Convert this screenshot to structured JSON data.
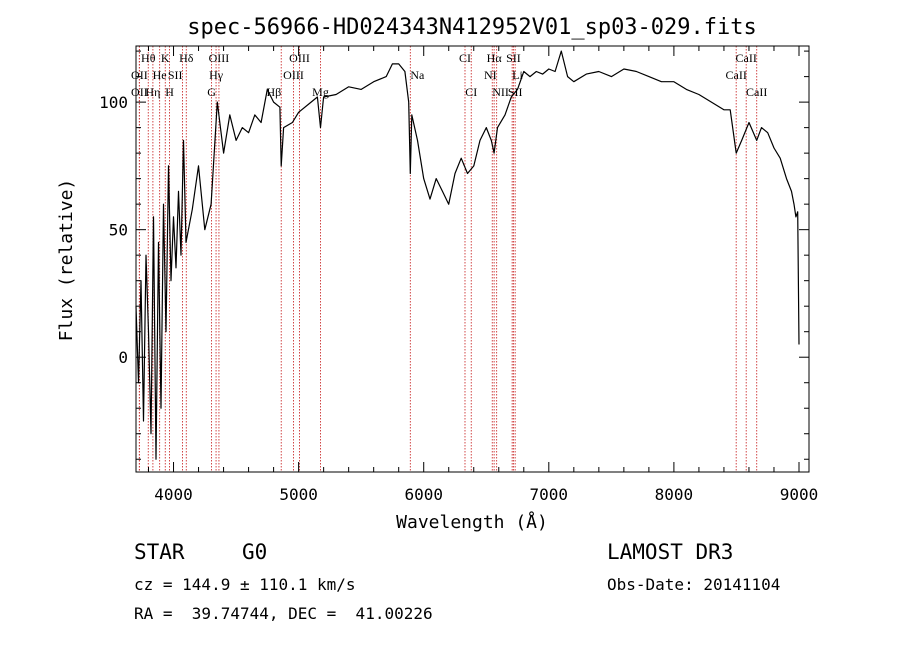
{
  "chart_data": {
    "type": "line",
    "title": "spec-56966-HD024343N412952V01_sp03-029.fits",
    "xlabel": "Wavelength (Å)",
    "ylabel": "Flux (relative)",
    "xlim": [
      3700,
      9080
    ],
    "ylim": [
      -45,
      122
    ],
    "x_ticks": [
      4000,
      5000,
      6000,
      7000,
      8000,
      9000
    ],
    "y_ticks": [
      0,
      50,
      100
    ],
    "grid": false,
    "series": [
      {
        "line_color": "#000000",
        "x": [
          3700,
          3720,
          3740,
          3760,
          3780,
          3800,
          3820,
          3840,
          3860,
          3880,
          3900,
          3920,
          3940,
          3960,
          3980,
          4000,
          4020,
          4040,
          4060,
          4080,
          4100,
          4150,
          4200,
          4250,
          4300,
          4350,
          4400,
          4450,
          4500,
          4550,
          4600,
          4650,
          4700,
          4750,
          4800,
          4850,
          4861,
          4880,
          4950,
          5000,
          5100,
          5150,
          5175,
          5200,
          5300,
          5400,
          5500,
          5600,
          5700,
          5750,
          5800,
          5850,
          5880,
          5893,
          5905,
          5950,
          6000,
          6050,
          6100,
          6150,
          6200,
          6250,
          6300,
          6350,
          6400,
          6450,
          6500,
          6540,
          6563,
          6590,
          6650,
          6700,
          6750,
          6800,
          6850,
          6900,
          6950,
          7000,
          7050,
          7100,
          7150,
          7200,
          7300,
          7400,
          7500,
          7600,
          7700,
          7800,
          7900,
          8000,
          8100,
          8200,
          8300,
          8400,
          8450,
          8498,
          8542,
          8600,
          8662,
          8700,
          8750,
          8800,
          8850,
          8900,
          8940,
          8960,
          8975,
          8990,
          9000
        ],
        "y": [
          20,
          -10,
          30,
          -25,
          40,
          10,
          -30,
          55,
          -40,
          45,
          -20,
          60,
          10,
          75,
          30,
          55,
          35,
          65,
          40,
          85,
          45,
          58,
          75,
          50,
          60,
          100,
          80,
          95,
          85,
          90,
          88,
          95,
          92,
          105,
          100,
          98,
          75,
          90,
          92,
          96,
          100,
          102,
          90,
          102,
          103,
          106,
          105,
          108,
          110,
          115,
          115,
          112,
          100,
          72,
          95,
          85,
          70,
          62,
          70,
          65,
          60,
          72,
          78,
          72,
          75,
          85,
          90,
          85,
          80,
          90,
          95,
          102,
          105,
          112,
          110,
          112,
          111,
          113,
          112,
          120,
          110,
          108,
          111,
          112,
          110,
          113,
          112,
          110,
          108,
          108,
          105,
          103,
          100,
          97,
          97,
          80,
          85,
          92,
          85,
          90,
          88,
          82,
          78,
          70,
          65,
          60,
          55,
          57,
          5
        ]
      }
    ],
    "line_markers": [
      {
        "label": "Hθ",
        "x": 3798,
        "row": 1,
        "align": "middle"
      },
      {
        "label": "K",
        "x": 3934,
        "row": 1,
        "align": "middle"
      },
      {
        "label": "Hδ",
        "x": 4102,
        "row": 1,
        "align": "middle"
      },
      {
        "label": "OIII",
        "x": 4363,
        "row": 1,
        "align": "middle"
      },
      {
        "label": "OIII",
        "x": 5007,
        "row": 1,
        "align": "middle"
      },
      {
        "label": "CI",
        "x": 6330,
        "row": 1,
        "align": "middle"
      },
      {
        "label": "Hα",
        "x": 6563,
        "row": 1,
        "align": "middle"
      },
      {
        "label": "SII",
        "x": 6717,
        "row": 1,
        "align": "middle"
      },
      {
        "label": "CaII",
        "x": 8578,
        "row": 1,
        "align": "middle"
      },
      {
        "label": "OII",
        "x": 3727,
        "row": 2,
        "align": "middle"
      },
      {
        "label": "He",
        "x": 3889,
        "row": 2,
        "align": "middle"
      },
      {
        "label": "SII",
        "x": 4072,
        "row": 2,
        "align": "end"
      },
      {
        "label": "Hγ",
        "x": 4340,
        "row": 2,
        "align": "middle"
      },
      {
        "label": "OIII",
        "x": 4959,
        "row": 2,
        "align": "middle"
      },
      {
        "label": "Na",
        "x": 5893,
        "row": 2,
        "align": "start"
      },
      {
        "label": "NI",
        "x": 6583,
        "row": 2,
        "align": "end"
      },
      {
        "label": "Li",
        "x": 6707,
        "row": 2,
        "align": "start"
      },
      {
        "label": "CaII",
        "x": 8498,
        "row": 2,
        "align": "middle"
      },
      {
        "label": "OII",
        "x": 3727,
        "row": 3,
        "align": "middle"
      },
      {
        "label": "Hη",
        "x": 3835,
        "row": 3,
        "align": "middle"
      },
      {
        "label": "H",
        "x": 3968,
        "row": 3,
        "align": "middle"
      },
      {
        "label": "G",
        "x": 4304,
        "row": 3,
        "align": "middle"
      },
      {
        "label": "Hβ",
        "x": 4861,
        "row": 3,
        "align": "end"
      },
      {
        "label": "Mg",
        "x": 5175,
        "row": 3,
        "align": "middle"
      },
      {
        "label": "CI",
        "x": 6380,
        "row": 3,
        "align": "middle"
      },
      {
        "label": "NII",
        "x": 6548,
        "row": 3,
        "align": "start"
      },
      {
        "label": "SII",
        "x": 6731,
        "row": 3,
        "align": "middle"
      },
      {
        "label": "CaII",
        "x": 8662,
        "row": 3,
        "align": "middle"
      }
    ],
    "marker_color": "#cc3333"
  },
  "info": {
    "class": "STAR",
    "subclass": "G0",
    "survey": "LAMOST DR3",
    "cz": "cz = 144.9 ± 110.1 km/s",
    "obs_date": "Obs-Date: 20141104",
    "coords": "RA =  39.74744, DEC =  41.00226"
  }
}
